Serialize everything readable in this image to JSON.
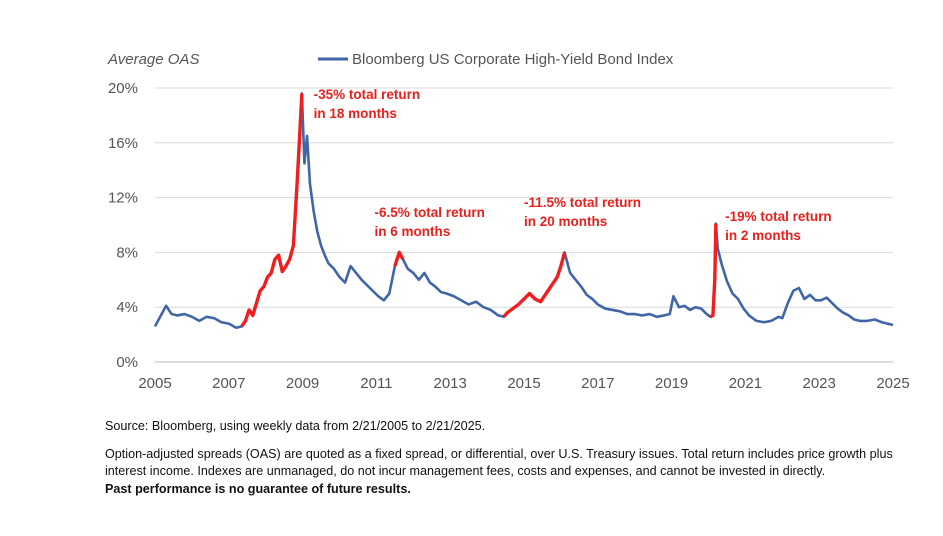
{
  "chart_data": {
    "type": "line",
    "ylabel": "Average OAS",
    "legend": {
      "label": "Bloomberg US Corporate High-Yield Bond Index",
      "placement": "top"
    },
    "colors": {
      "series": "#4066a8",
      "highlight": "#f01e1e",
      "grid": "#d8d8d8",
      "axis": "#bbbbbb"
    },
    "xlim": [
      2005,
      2025
    ],
    "ylim": [
      0,
      20
    ],
    "y_ticks": [
      "0%",
      "4%",
      "8%",
      "12%",
      "16%",
      "20%"
    ],
    "x_ticks": [
      "2005",
      "2007",
      "2009",
      "2011",
      "2013",
      "2015",
      "2017",
      "2019",
      "2021",
      "2023",
      "2025"
    ],
    "grid": "horizontal",
    "series": [
      {
        "name": "Bloomberg US Corporate High-Yield Bond Index",
        "x": [
          2005.0,
          2005.12,
          2005.3,
          2005.45,
          2005.6,
          2005.8,
          2006.0,
          2006.2,
          2006.4,
          2006.6,
          2006.8,
          2007.0,
          2007.2,
          2007.35,
          2007.45,
          2007.55,
          2007.65,
          2007.75,
          2007.85,
          2007.95,
          2008.05,
          2008.15,
          2008.25,
          2008.35,
          2008.45,
          2008.55,
          2008.65,
          2008.75,
          2008.85,
          2008.92,
          2008.98,
          2009.05,
          2009.12,
          2009.2,
          2009.3,
          2009.4,
          2009.5,
          2009.6,
          2009.7,
          2009.85,
          2010.0,
          2010.15,
          2010.3,
          2010.45,
          2010.6,
          2010.75,
          2010.9,
          2011.05,
          2011.2,
          2011.35,
          2011.5,
          2011.62,
          2011.72,
          2011.85,
          2012.0,
          2012.15,
          2012.3,
          2012.45,
          2012.6,
          2012.75,
          2012.9,
          2013.1,
          2013.3,
          2013.5,
          2013.7,
          2013.9,
          2014.1,
          2014.3,
          2014.45,
          2014.55,
          2014.7,
          2014.85,
          2015.0,
          2015.15,
          2015.3,
          2015.45,
          2015.6,
          2015.75,
          2015.9,
          2016.0,
          2016.1,
          2016.25,
          2016.4,
          2016.55,
          2016.7,
          2016.85,
          2017.0,
          2017.2,
          2017.4,
          2017.6,
          2017.8,
          2018.0,
          2018.2,
          2018.4,
          2018.6,
          2018.8,
          2018.95,
          2019.05,
          2019.2,
          2019.35,
          2019.5,
          2019.65,
          2019.8,
          2019.95,
          2020.05,
          2020.12,
          2020.17,
          2020.2,
          2020.25,
          2020.35,
          2020.5,
          2020.65,
          2020.8,
          2020.95,
          2021.1,
          2021.3,
          2021.5,
          2021.7,
          2021.9,
          2022.0,
          2022.15,
          2022.3,
          2022.45,
          2022.6,
          2022.75,
          2022.9,
          2023.05,
          2023.2,
          2023.35,
          2023.5,
          2023.65,
          2023.8,
          2023.95,
          2024.1,
          2024.3,
          2024.5,
          2024.7,
          2024.85,
          2025.0
        ],
        "y": [
          2.6,
          3.2,
          4.1,
          3.5,
          3.4,
          3.5,
          3.3,
          3.0,
          3.3,
          3.2,
          2.9,
          2.8,
          2.5,
          2.6,
          3.0,
          3.8,
          3.4,
          4.3,
          5.2,
          5.5,
          6.2,
          6.5,
          7.5,
          7.8,
          6.6,
          7.0,
          7.5,
          8.5,
          13.0,
          16.5,
          19.6,
          14.5,
          16.5,
          13.0,
          11.0,
          9.5,
          8.5,
          7.8,
          7.2,
          6.8,
          6.2,
          5.8,
          7.0,
          6.5,
          6.0,
          5.6,
          5.2,
          4.8,
          4.5,
          5.0,
          7.0,
          8.0,
          7.5,
          6.8,
          6.5,
          6.0,
          6.5,
          5.8,
          5.5,
          5.1,
          5.0,
          4.8,
          4.5,
          4.2,
          4.4,
          4.0,
          3.8,
          3.4,
          3.3,
          3.6,
          3.9,
          4.2,
          4.6,
          5.0,
          4.6,
          4.4,
          5.0,
          5.6,
          6.2,
          7.0,
          8.0,
          6.5,
          6.0,
          5.5,
          4.9,
          4.6,
          4.2,
          3.9,
          3.8,
          3.7,
          3.5,
          3.5,
          3.4,
          3.5,
          3.3,
          3.4,
          3.5,
          4.8,
          4.0,
          4.1,
          3.8,
          4.0,
          3.9,
          3.5,
          3.3,
          3.4,
          6.0,
          10.1,
          8.3,
          7.2,
          5.9,
          5.0,
          4.6,
          3.9,
          3.4,
          3.0,
          2.9,
          3.0,
          3.3,
          3.2,
          4.3,
          5.2,
          5.4,
          4.6,
          4.9,
          4.5,
          4.5,
          4.7,
          4.3,
          3.9,
          3.6,
          3.4,
          3.1,
          3.0,
          3.0,
          3.1,
          2.9,
          2.8,
          2.7
        ],
        "highlight_ranges": [
          [
            2007.35,
            2009.0
          ],
          [
            2011.4,
            2011.72
          ],
          [
            2014.4,
            2016.1
          ],
          [
            2020.02,
            2020.2
          ]
        ]
      }
    ],
    "annotations": [
      {
        "x": 2009.3,
        "y": 19.2,
        "lines": [
          "-35% total return",
          "in 18 months"
        ]
      },
      {
        "x": 2010.95,
        "y": 10.6,
        "lines": [
          "-6.5% total return",
          "in 6 months"
        ]
      },
      {
        "x": 2015.0,
        "y": 11.3,
        "lines": [
          "-11.5% total return",
          "in 20 months"
        ]
      },
      {
        "x": 2020.45,
        "y": 10.3,
        "lines": [
          "-19% total return",
          "in 2 months"
        ]
      }
    ]
  },
  "notes": {
    "source": "Source: Bloomberg, using weekly data from 2/21/2005 to 2/21/2025.",
    "description": "Option-adjusted spreads (OAS) are quoted as a fixed spread, or differential, over U.S. Treasury issues. Total return includes price growth plus interest income. Indexes are unmanaged, do not incur management fees, costs and expenses, and cannot be invested in directly.",
    "disclaimer": "Past performance is no guarantee of future results."
  }
}
